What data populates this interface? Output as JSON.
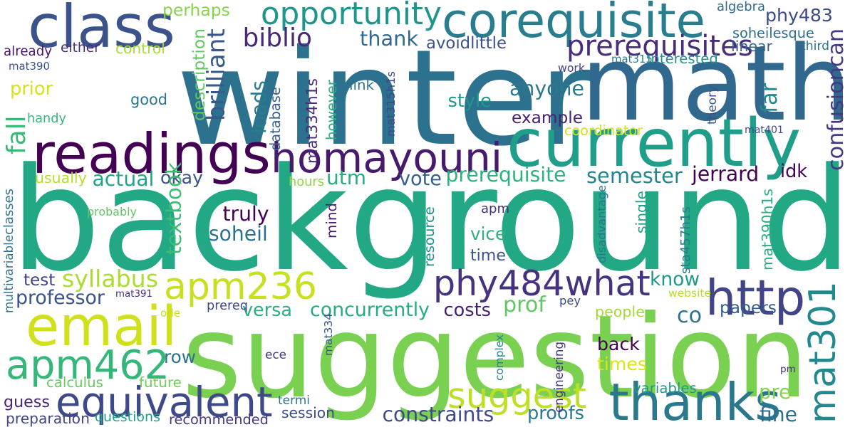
{
  "words": [
    {
      "text": "background",
      "color": "#22a884"
    },
    {
      "text": "winter",
      "color": "#2c728e"
    },
    {
      "text": "suggestion",
      "color": "#7ad151"
    },
    {
      "text": "math",
      "color": "#31688e"
    },
    {
      "text": "readings",
      "color": "#440154"
    },
    {
      "text": "currently",
      "color": "#1f9e89"
    },
    {
      "text": "homayouni",
      "color": "#481a6c"
    },
    {
      "text": "class",
      "color": "#3b528b"
    },
    {
      "text": "corequisite",
      "color": "#287d8e"
    },
    {
      "text": "apm236",
      "color": "#c8e020"
    },
    {
      "text": "email",
      "color": "#d0e11c"
    },
    {
      "text": "apm462",
      "color": "#35b779"
    },
    {
      "text": "equivalent",
      "color": "#3e4989"
    },
    {
      "text": "thanks",
      "color": "#2a788e"
    },
    {
      "text": "mat301",
      "color": "#23898e"
    },
    {
      "text": "http",
      "color": "#414487"
    },
    {
      "text": "phy484what",
      "color": "#46327e"
    },
    {
      "text": "suggest",
      "color": "#bddf26"
    },
    {
      "text": "opportunity",
      "color": "#1f958b"
    },
    {
      "text": "prerequisites",
      "color": "#472d7b"
    },
    {
      "text": "biblio",
      "color": "#482878"
    },
    {
      "text": "thank",
      "color": "#31688e"
    },
    {
      "text": "avoidlittle",
      "color": "#3b528b"
    },
    {
      "text": "phy483",
      "color": "#3e4989"
    },
    {
      "text": "soheilesque",
      "color": "#2e6f8e"
    },
    {
      "text": "confusioncan",
      "color": "#443983"
    },
    {
      "text": "perhaps",
      "color": "#86d549"
    },
    {
      "text": "brilliant",
      "color": "#38598c"
    },
    {
      "text": "description",
      "color": "#5ec962"
    },
    {
      "text": "anyone",
      "color": "#2a788e"
    },
    {
      "text": "example",
      "color": "#482173"
    },
    {
      "text": "style",
      "color": "#1f978b"
    },
    {
      "text": "fall",
      "color": "#3aba76"
    },
    {
      "text": "prior",
      "color": "#d8e219"
    },
    {
      "text": "good",
      "color": "#2a768e"
    },
    {
      "text": "loads",
      "color": "#287c8e"
    },
    {
      "text": "mat334h1s",
      "color": "#472c7a"
    },
    {
      "text": "mat315h1s",
      "color": "#3f4889"
    },
    {
      "text": "however",
      "color": "#25ac82"
    },
    {
      "text": "database",
      "color": "#355f8d"
    },
    {
      "text": "actual",
      "color": "#20a486"
    },
    {
      "text": "okay",
      "color": "#3b528b"
    },
    {
      "text": "utm",
      "color": "#26ad81"
    },
    {
      "text": "vote",
      "color": "#33628d"
    },
    {
      "text": "prerequisite",
      "color": "#2db27d"
    },
    {
      "text": "semester",
      "color": "#25858e"
    },
    {
      "text": "jerrard",
      "color": "#440154"
    },
    {
      "text": "idk",
      "color": "#450559"
    },
    {
      "text": "far",
      "color": "#23898e"
    },
    {
      "text": "syllabus",
      "color": "#addc30"
    },
    {
      "text": "professor",
      "color": "#3b528b"
    },
    {
      "text": "test",
      "color": "#414487"
    },
    {
      "text": "textbook",
      "color": "#3dbc74"
    },
    {
      "text": "truly",
      "color": "#440154"
    },
    {
      "text": "soheil",
      "color": "#2c718e"
    },
    {
      "text": "resource",
      "color": "#20928c"
    },
    {
      "text": "apm",
      "color": "#46307e"
    },
    {
      "text": "vice",
      "color": "#2db27d"
    },
    {
      "text": "time",
      "color": "#39568c"
    },
    {
      "text": "know",
      "color": "#1f998a"
    },
    {
      "text": "prof",
      "color": "#5ec962"
    },
    {
      "text": "co",
      "color": "#2c728e"
    },
    {
      "text": "papers",
      "color": "#365c8d"
    },
    {
      "text": "people",
      "color": "#a2da37"
    },
    {
      "text": "versa",
      "color": "#2ab07f"
    },
    {
      "text": "concurrently",
      "color": "#25ac82"
    },
    {
      "text": "costs",
      "color": "#481f70"
    },
    {
      "text": "back",
      "color": "#440154"
    },
    {
      "text": "times",
      "color": "#dde318"
    },
    {
      "text": "row",
      "color": "#2c728e"
    },
    {
      "text": "pre",
      "color": "#84d44b"
    },
    {
      "text": "fine",
      "color": "#2f6c8e"
    },
    {
      "text": "guess",
      "color": "#482475"
    },
    {
      "text": "session",
      "color": "#3e4a89"
    },
    {
      "text": "constraints",
      "color": "#3e4989"
    },
    {
      "text": "proofs",
      "color": "#2a778e"
    },
    {
      "text": "recommended",
      "color": "#453781"
    },
    {
      "text": "preparation",
      "color": "#414487"
    },
    {
      "text": "questions",
      "color": "#1fa188"
    },
    {
      "text": "calculus",
      "color": "#65cb5e"
    },
    {
      "text": "future",
      "color": "#6ece58"
    },
    {
      "text": "ece",
      "color": "#443a83"
    },
    {
      "text": "mat334",
      "color": "#39568c"
    },
    {
      "text": "complex",
      "color": "#26828e"
    },
    {
      "text": "engineering",
      "color": "#46337f"
    },
    {
      "text": "variables",
      "color": "#1f9a8a"
    },
    {
      "text": "termi",
      "color": "#2a768e"
    },
    {
      "text": "pm",
      "color": "#472f7d"
    },
    {
      "text": "pey",
      "color": "#3e4a89"
    },
    {
      "text": "website",
      "color": "#b5de2b"
    },
    {
      "text": "ode",
      "color": "#c2df23"
    },
    {
      "text": "prereq",
      "color": "#3e4a89"
    },
    {
      "text": "mat391",
      "color": "#472d7b"
    },
    {
      "text": "multivariable",
      "color": "#2d718e"
    },
    {
      "text": "classes",
      "color": "#2c738e"
    },
    {
      "text": "probably",
      "color": "#5ec962"
    },
    {
      "text": "usually",
      "color": "#b5de2b"
    },
    {
      "text": "handy",
      "color": "#37b878"
    },
    {
      "text": "already",
      "color": "#481668"
    },
    {
      "text": "either",
      "color": "#472d7b"
    },
    {
      "text": "control",
      "color": "#a8db34"
    },
    {
      "text": "mat390",
      "color": "#3b528b"
    },
    {
      "text": "link",
      "color": "#2c728e"
    },
    {
      "text": "mat315",
      "color": "#287c8e"
    },
    {
      "text": "interested",
      "color": "#21918c"
    },
    {
      "text": "work",
      "color": "#414487"
    },
    {
      "text": "mat401",
      "color": "#3e4a89"
    },
    {
      "text": "coordinator",
      "color": "#d2e21b"
    },
    {
      "text": "theory",
      "color": "#3b528b"
    },
    {
      "text": "algebra",
      "color": "#31688e"
    },
    {
      "text": "linear",
      "color": "#33638d"
    },
    {
      "text": "third",
      "color": "#2c728e"
    },
    {
      "text": "hours",
      "color": "#8fd744"
    },
    {
      "text": "mind",
      "color": "#481f70"
    },
    {
      "text": "disadvantage",
      "color": "#2b748e"
    },
    {
      "text": "single",
      "color": "#1fa088"
    },
    {
      "text": "sta457h1s",
      "color": "#2a788e"
    },
    {
      "text": "mat390h1s",
      "color": "#29af7f"
    }
  ]
}
